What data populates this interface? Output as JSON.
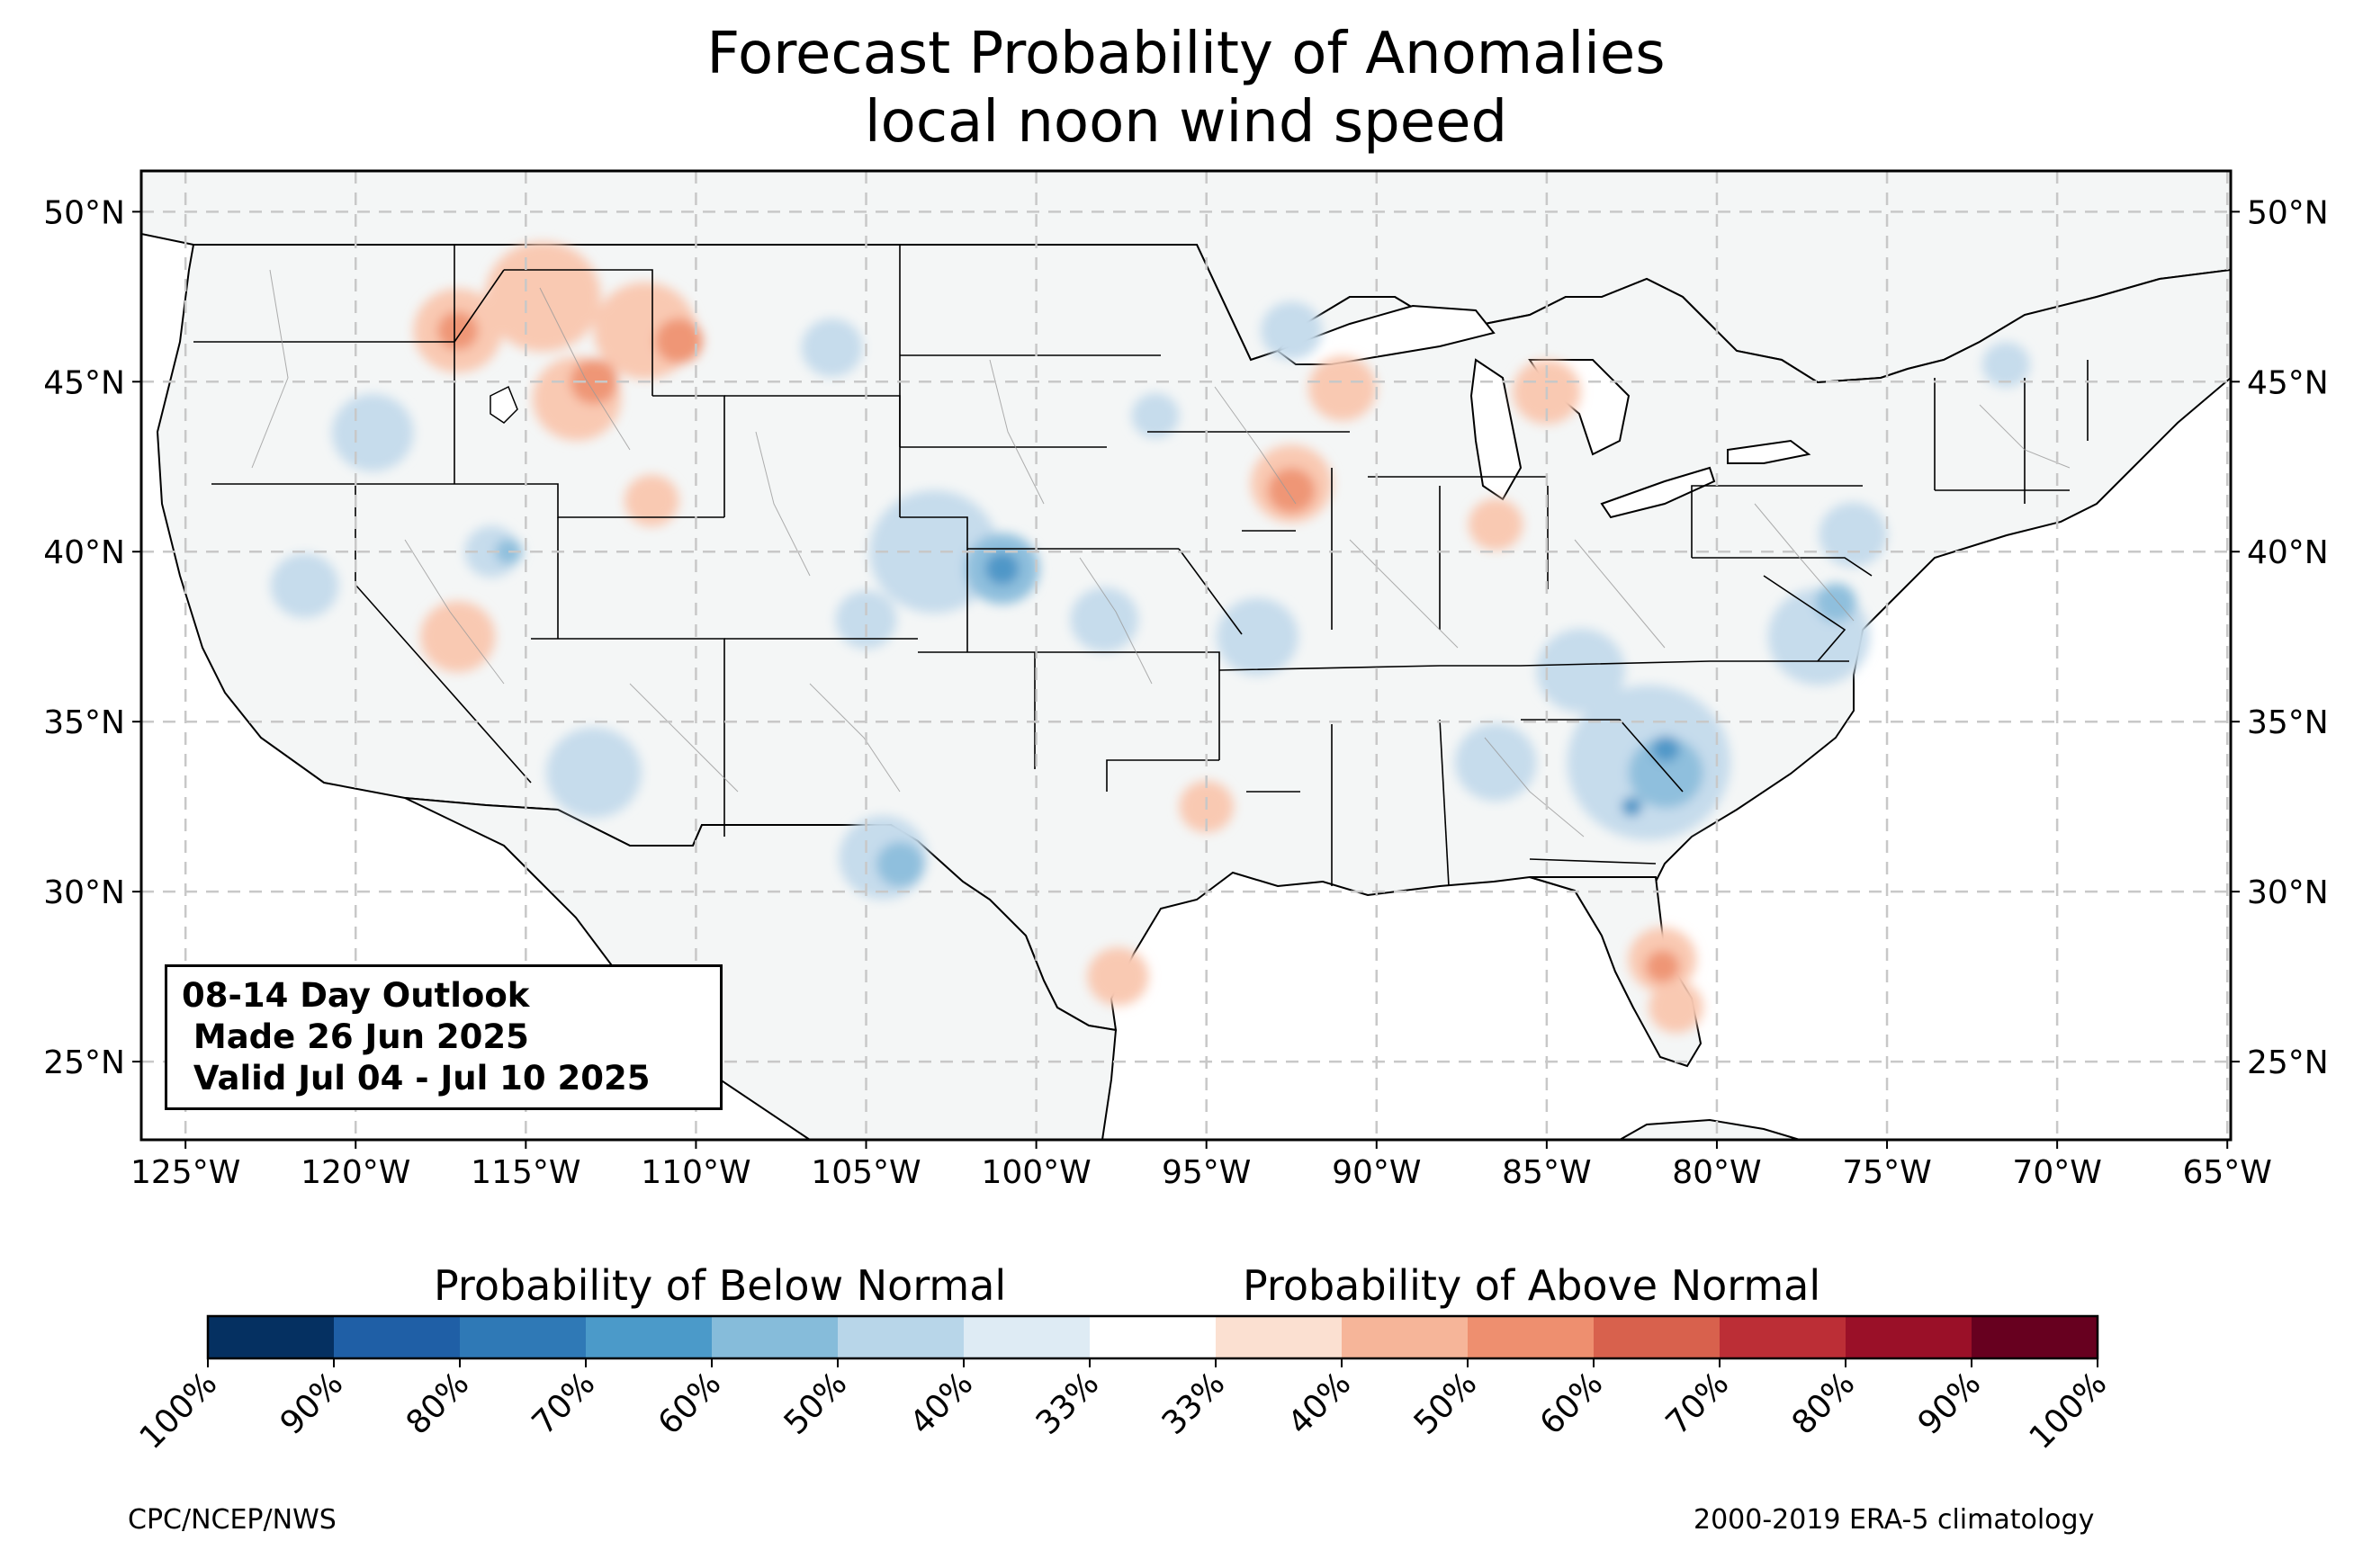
{
  "title": {
    "line1": "Forecast Probability of Anomalies",
    "line2": "local noon wind speed"
  },
  "map": {
    "lon_range": [
      -126.3,
      -64.9
    ],
    "lat_range": [
      22.7,
      51.2
    ],
    "lon_ticks": [
      "125°W",
      "120°W",
      "115°W",
      "110°W",
      "105°W",
      "100°W",
      "95°W",
      "90°W",
      "85°W",
      "80°W",
      "75°W",
      "70°W",
      "65°W"
    ],
    "lat_ticks": [
      "50°N",
      "45°N",
      "40°N",
      "35°N",
      "30°N",
      "25°N"
    ],
    "land_color": "#f4f6f6",
    "gridlines": true
  },
  "info_box": {
    "line1": "08-14 Day Outlook",
    "line2": " Made 26 Jun 2025",
    "line3": " Valid Jul 04 - Jul 10 2025"
  },
  "legend": {
    "below_label": "Probability of Below Normal",
    "above_label": "Probability of Above Normal",
    "tick_labels": [
      "100%",
      "90%",
      "80%",
      "70%",
      "60%",
      "50%",
      "40%",
      "33%",
      "33%",
      "40%",
      "50%",
      "60%",
      "70%",
      "80%",
      "90%",
      "100%"
    ],
    "colors": [
      "#053061",
      "#1f5fa6",
      "#2f79b6",
      "#4b9ac9",
      "#86bcda",
      "#b8d6e9",
      "#deebf4",
      "#ffffff",
      "#fbe0d1",
      "#f6b599",
      "#ee8f6f",
      "#d8614d",
      "#bc2e36",
      "#9a1028",
      "#67001f"
    ]
  },
  "footer": {
    "left": "CPC/NCEP/NWS",
    "right": "2000-2019 ERA-5 climatology"
  },
  "anomalies": [
    {
      "category": "above",
      "level": 1,
      "lon": -117.0,
      "lat": 46.5,
      "r": 1.3
    },
    {
      "category": "above",
      "level": 1,
      "lon": -114.5,
      "lat": 47.5,
      "r": 1.7
    },
    {
      "category": "above",
      "level": 1,
      "lon": -111.5,
      "lat": 46.5,
      "r": 1.5
    },
    {
      "category": "above",
      "level": 1,
      "lon": -113.5,
      "lat": 44.5,
      "r": 1.3
    },
    {
      "category": "above",
      "level": 1,
      "lon": -111.3,
      "lat": 41.5,
      "r": 0.8
    },
    {
      "category": "above",
      "level": 1,
      "lon": -117.0,
      "lat": 37.5,
      "r": 1.1
    },
    {
      "category": "above",
      "level": 1,
      "lon": -91.0,
      "lat": 44.8,
      "r": 1.0
    },
    {
      "category": "above",
      "level": 1,
      "lon": -92.5,
      "lat": 42.0,
      "r": 1.2
    },
    {
      "category": "above",
      "level": 1,
      "lon": -85.0,
      "lat": 44.7,
      "r": 1.0
    },
    {
      "category": "above",
      "level": 1,
      "lon": -86.5,
      "lat": 40.8,
      "r": 0.8
    },
    {
      "category": "above",
      "level": 1,
      "lon": -81.6,
      "lat": 28.0,
      "r": 1.0
    },
    {
      "category": "above",
      "level": 1,
      "lon": -81.2,
      "lat": 26.6,
      "r": 0.8
    },
    {
      "category": "above",
      "level": 1,
      "lon": -97.6,
      "lat": 27.5,
      "r": 0.9
    },
    {
      "category": "above",
      "level": 1,
      "lon": -95.0,
      "lat": 32.5,
      "r": 0.8
    },
    {
      "category": "above",
      "level": 2,
      "lon": -117.0,
      "lat": 46.5,
      "r": 0.6
    },
    {
      "category": "above",
      "level": 2,
      "lon": -113.0,
      "lat": 45.0,
      "r": 0.7
    },
    {
      "category": "above",
      "level": 2,
      "lon": -110.5,
      "lat": 46.2,
      "r": 0.7
    },
    {
      "category": "above",
      "level": 2,
      "lon": -92.5,
      "lat": 41.8,
      "r": 0.7
    },
    {
      "category": "above",
      "level": 2,
      "lon": -81.6,
      "lat": 27.8,
      "r": 0.5
    },
    {
      "category": "below",
      "level": 1,
      "lon": -103.0,
      "lat": 40.0,
      "r": 1.9
    },
    {
      "category": "below",
      "level": 1,
      "lon": -116.0,
      "lat": 40.0,
      "r": 0.8
    },
    {
      "category": "below",
      "level": 1,
      "lon": -121.5,
      "lat": 39.0,
      "r": 1.0
    },
    {
      "category": "below",
      "level": 1,
      "lon": -119.5,
      "lat": 43.5,
      "r": 1.2
    },
    {
      "category": "below",
      "level": 1,
      "lon": -106.0,
      "lat": 46.0,
      "r": 0.9
    },
    {
      "category": "below",
      "level": 1,
      "lon": -105.0,
      "lat": 38.0,
      "r": 0.9
    },
    {
      "category": "below",
      "level": 1,
      "lon": -113.0,
      "lat": 33.5,
      "r": 1.4
    },
    {
      "category": "below",
      "level": 1,
      "lon": -104.5,
      "lat": 31.0,
      "r": 1.3
    },
    {
      "category": "below",
      "level": 1,
      "lon": -98.0,
      "lat": 38.0,
      "r": 1.0
    },
    {
      "category": "below",
      "level": 1,
      "lon": -93.5,
      "lat": 37.5,
      "r": 1.2
    },
    {
      "category": "below",
      "level": 1,
      "lon": -82.0,
      "lat": 33.8,
      "r": 2.4
    },
    {
      "category": "below",
      "level": 1,
      "lon": -77.0,
      "lat": 37.5,
      "r": 1.5
    },
    {
      "category": "below",
      "level": 1,
      "lon": -84.0,
      "lat": 36.5,
      "r": 1.3
    },
    {
      "category": "below",
      "level": 1,
      "lon": -86.5,
      "lat": 33.8,
      "r": 1.2
    },
    {
      "category": "below",
      "level": 1,
      "lon": -76.0,
      "lat": 40.5,
      "r": 1.0
    },
    {
      "category": "below",
      "level": 1,
      "lon": -71.5,
      "lat": 45.5,
      "r": 0.7
    },
    {
      "category": "below",
      "level": 1,
      "lon": -92.5,
      "lat": 46.5,
      "r": 0.9
    },
    {
      "category": "below",
      "level": 1,
      "lon": -96.5,
      "lat": 44.0,
      "r": 0.7
    },
    {
      "category": "below",
      "level": 2,
      "lon": -101.0,
      "lat": 39.5,
      "r": 1.1
    },
    {
      "category": "below",
      "level": 2,
      "lon": -81.5,
      "lat": 33.5,
      "r": 1.1
    },
    {
      "category": "below",
      "level": 2,
      "lon": -104.0,
      "lat": 30.8,
      "r": 0.7
    },
    {
      "category": "below",
      "level": 2,
      "lon": -76.5,
      "lat": 38.5,
      "r": 0.6
    },
    {
      "category": "below",
      "level": 2,
      "lon": -115.5,
      "lat": 40.0,
      "r": 0.4
    },
    {
      "category": "below",
      "level": 3,
      "lon": -101.0,
      "lat": 39.5,
      "r": 0.5
    },
    {
      "category": "below",
      "level": 3,
      "lon": -81.5,
      "lat": 34.2,
      "r": 0.4
    },
    {
      "category": "below",
      "level": 3,
      "lon": -82.5,
      "lat": 32.5,
      "r": 0.3
    }
  ]
}
